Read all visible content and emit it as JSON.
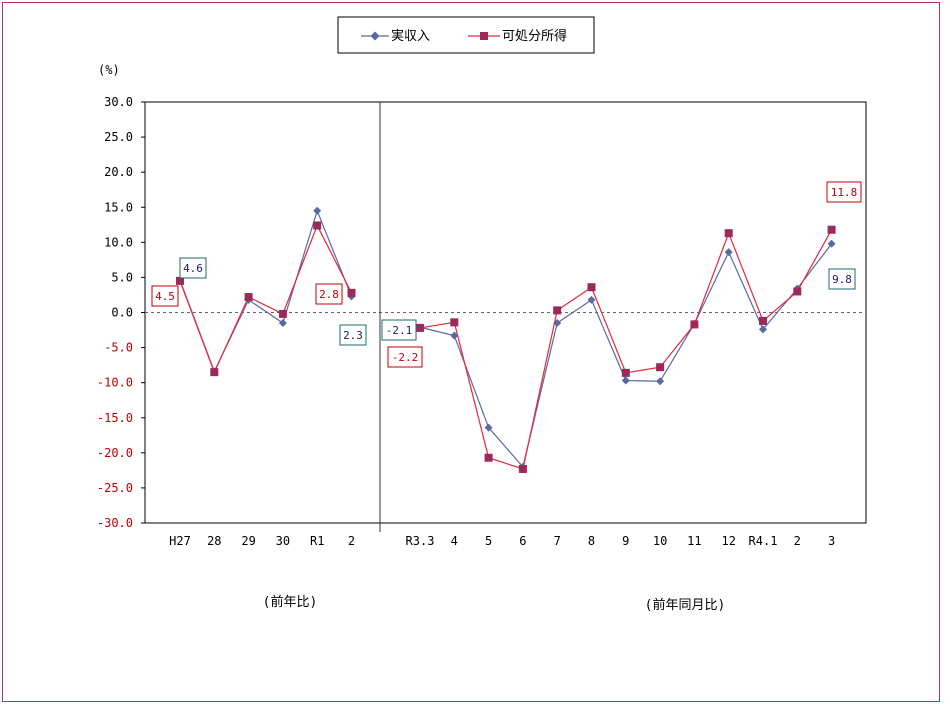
{
  "chart_data": {
    "type": "line",
    "unit_label": "(%)",
    "ylim": [
      -30,
      30
    ],
    "y_ticks": [
      "30.0",
      "25.0",
      "20.0",
      "15.0",
      "10.0",
      "5.0",
      "0.0",
      "-5.0",
      "-10.0",
      "-15.0",
      "-20.0",
      "-25.0",
      "-30.0"
    ],
    "y_tick_values": [
      30,
      25,
      20,
      15,
      10,
      5,
      0,
      -5,
      -10,
      -15,
      -20,
      -25,
      -30
    ],
    "legend": {
      "position": "top-center",
      "items": [
        "実収入",
        "可処分所得"
      ]
    },
    "groups": [
      {
        "label": "(前年比)",
        "categories": [
          "H27",
          "28",
          "29",
          "30",
          "R1",
          "2"
        ],
        "series": [
          {
            "name": "実収入",
            "color": "#5a6aa0",
            "marker": "diamond",
            "values": [
              4.6,
              -8.4,
              1.8,
              -1.5,
              14.5,
              2.3
            ]
          },
          {
            "name": "可処分所得",
            "color": "#e3283c",
            "marker": "square",
            "values": [
              4.5,
              -8.5,
              2.2,
              -0.2,
              12.4,
              2.8
            ]
          }
        ]
      },
      {
        "label": "(前年同月比)",
        "categories": [
          "R3.3",
          "4",
          "5",
          "6",
          "7",
          "8",
          "9",
          "10",
          "11",
          "12",
          "R4.1",
          "2",
          "3"
        ],
        "series": [
          {
            "name": "実収入",
            "color": "#5a6aa0",
            "marker": "diamond",
            "values": [
              -2.1,
              -3.3,
              -16.4,
              -22.0,
              -1.5,
              1.8,
              -9.7,
              -9.8,
              -1.6,
              8.6,
              -2.4,
              3.4,
              9.8
            ]
          },
          {
            "name": "可処分所得",
            "color": "#e3283c",
            "marker": "square",
            "values": [
              -2.2,
              -1.4,
              -20.7,
              -22.3,
              0.3,
              3.6,
              -8.6,
              -7.8,
              -1.7,
              11.3,
              -1.2,
              3.0,
              11.8
            ]
          }
        ]
      }
    ],
    "annotations": [
      {
        "text": "4.6",
        "series": "実収入",
        "color": "#1b6b73"
      },
      {
        "text": "4.5",
        "series": "可処分所得",
        "color": "#c00000"
      },
      {
        "text": "2.8",
        "series": "可処分所得",
        "color": "#c00000"
      },
      {
        "text": "2.3",
        "series": "実収入",
        "color": "#1b6b73"
      },
      {
        "text": "-2.1",
        "series": "実収入",
        "color": "#1b6b73"
      },
      {
        "text": "-2.2",
        "series": "可処分所得",
        "color": "#c00000"
      },
      {
        "text": "11.8",
        "series": "可処分所得",
        "color": "#c00000"
      },
      {
        "text": "9.8",
        "series": "実収入",
        "color": "#1b6b73"
      }
    ]
  }
}
